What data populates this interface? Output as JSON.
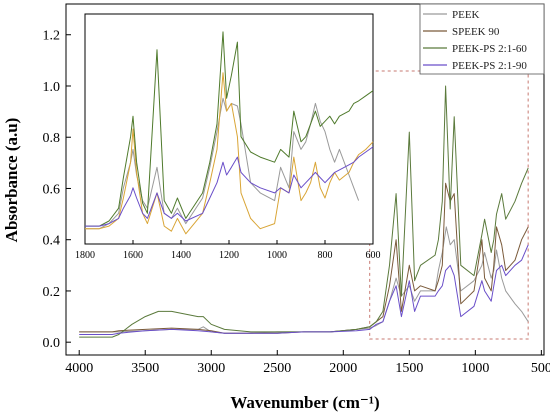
{
  "chart_data": [
    {
      "type": "line",
      "role": "main",
      "xlabel": "Wavenumber (cm⁻¹)",
      "ylabel": "Absorbance (a.u)",
      "xlim": [
        4100,
        480
      ],
      "ylim": [
        -0.05,
        1.32
      ],
      "x_reversed": true,
      "x_ticks": [
        4000,
        3500,
        3000,
        2500,
        2000,
        1500,
        1000,
        500
      ],
      "y_ticks": [
        0.0,
        0.2,
        0.4,
        0.6,
        0.8,
        1.0,
        1.2
      ],
      "y_tick_labels": [
        "0.0",
        "0.2",
        "0.4",
        "0.6",
        "0.8",
        "1.0",
        "1.2"
      ],
      "grid": false,
      "legend_placement": "top-right",
      "highlight_region": {
        "x_range": [
          1800,
          600
        ],
        "style": "dashed-box",
        "color": "#c77a72"
      },
      "series": [
        {
          "name": "PEEK",
          "color": "#9a9a9a",
          "x": [
            4000,
            3750,
            3700,
            3500,
            3300,
            3100,
            3060,
            3000,
            2900,
            2700,
            2500,
            2300,
            2100,
            1900,
            1800,
            1750,
            1700,
            1650,
            1600,
            1560,
            1500,
            1460,
            1415,
            1305,
            1280,
            1250,
            1220,
            1190,
            1160,
            1110,
            1010,
            950,
            930,
            880,
            860,
            840,
            800,
            770,
            700,
            650,
            600
          ],
          "y": [
            0.04,
            0.04,
            0.04,
            0.045,
            0.05,
            0.05,
            0.06,
            0.04,
            0.035,
            0.035,
            0.04,
            0.04,
            0.04,
            0.05,
            0.055,
            0.065,
            0.08,
            0.16,
            0.25,
            0.18,
            0.22,
            0.16,
            0.2,
            0.2,
            0.28,
            0.35,
            0.45,
            0.38,
            0.4,
            0.2,
            0.24,
            0.3,
            0.35,
            0.25,
            0.28,
            0.36,
            0.25,
            0.2,
            0.15,
            0.12,
            0.08
          ]
        },
        {
          "name": "SPEEK 90",
          "color": "#7a5a3a",
          "x": [
            4000,
            3750,
            3700,
            3500,
            3300,
            3100,
            3000,
            2900,
            2700,
            2500,
            2300,
            2100,
            1900,
            1800,
            1750,
            1700,
            1650,
            1600,
            1560,
            1500,
            1460,
            1415,
            1305,
            1280,
            1250,
            1225,
            1190,
            1160,
            1110,
            1010,
            950,
            930,
            880,
            860,
            840,
            800,
            770,
            700,
            650,
            600
          ],
          "y": [
            0.04,
            0.04,
            0.045,
            0.05,
            0.055,
            0.05,
            0.045,
            0.035,
            0.035,
            0.035,
            0.04,
            0.04,
            0.05,
            0.06,
            0.08,
            0.1,
            0.22,
            0.4,
            0.12,
            0.3,
            0.2,
            0.22,
            0.2,
            0.24,
            0.3,
            0.62,
            0.55,
            0.58,
            0.15,
            0.2,
            0.4,
            0.25,
            0.2,
            0.3,
            0.45,
            0.38,
            0.28,
            0.32,
            0.4,
            0.45
          ]
        },
        {
          "name": "PEEK-PS 2:1-60",
          "color": "#5b7a3c",
          "x": [
            4000,
            3750,
            3700,
            3600,
            3500,
            3400,
            3300,
            3200,
            3100,
            3060,
            3000,
            2900,
            2700,
            2500,
            2300,
            2100,
            1900,
            1800,
            1750,
            1700,
            1650,
            1600,
            1560,
            1500,
            1460,
            1415,
            1305,
            1280,
            1250,
            1225,
            1190,
            1160,
            1110,
            1010,
            950,
            930,
            880,
            860,
            840,
            800,
            770,
            700,
            650,
            600
          ],
          "y": [
            0.02,
            0.02,
            0.03,
            0.07,
            0.1,
            0.12,
            0.12,
            0.11,
            0.1,
            0.1,
            0.07,
            0.05,
            0.04,
            0.04,
            0.04,
            0.04,
            0.05,
            0.06,
            0.08,
            0.12,
            0.3,
            0.58,
            0.18,
            0.82,
            0.24,
            0.3,
            0.34,
            0.4,
            0.55,
            1.0,
            0.52,
            0.88,
            0.3,
            0.26,
            0.42,
            0.48,
            0.35,
            0.4,
            0.5,
            0.58,
            0.48,
            0.55,
            0.62,
            0.68
          ]
        },
        {
          "name": "PEEK-PS 2:1-90",
          "color": "#6a4fc9",
          "x": [
            4000,
            3750,
            3700,
            3500,
            3300,
            3100,
            3000,
            2900,
            2700,
            2500,
            2300,
            2100,
            1900,
            1800,
            1750,
            1700,
            1650,
            1600,
            1560,
            1500,
            1460,
            1415,
            1305,
            1280,
            1250,
            1225,
            1190,
            1160,
            1110,
            1010,
            950,
            930,
            880,
            860,
            840,
            800,
            770,
            700,
            650,
            600
          ],
          "y": [
            0.03,
            0.03,
            0.035,
            0.045,
            0.05,
            0.045,
            0.04,
            0.035,
            0.035,
            0.035,
            0.04,
            0.04,
            0.045,
            0.05,
            0.07,
            0.08,
            0.16,
            0.22,
            0.1,
            0.24,
            0.12,
            0.18,
            0.18,
            0.2,
            0.22,
            0.28,
            0.3,
            0.26,
            0.1,
            0.14,
            0.24,
            0.2,
            0.16,
            0.22,
            0.28,
            0.3,
            0.26,
            0.3,
            0.32,
            0.38
          ]
        }
      ]
    },
    {
      "type": "line",
      "role": "inset",
      "xlim": [
        1800,
        600
      ],
      "ylim": [
        0.38,
        1.28
      ],
      "x_reversed": true,
      "x_ticks": [
        1800,
        1600,
        1400,
        1200,
        1000,
        800,
        600
      ],
      "series": [
        {
          "name": "PEEK",
          "color": "#9a9a9a",
          "x": [
            1800,
            1740,
            1700,
            1660,
            1640,
            1610,
            1600,
            1585,
            1560,
            1540,
            1500,
            1470,
            1440,
            1415,
            1380,
            1310,
            1280,
            1250,
            1225,
            1210,
            1190,
            1165,
            1150,
            1110,
            1070,
            1010,
            985,
            950,
            930,
            900,
            880,
            860,
            840,
            820,
            800,
            780,
            760,
            740,
            700,
            680,
            660
          ],
          "y": [
            0.44,
            0.44,
            0.46,
            0.5,
            0.6,
            0.7,
            0.75,
            0.65,
            0.55,
            0.52,
            0.68,
            0.5,
            0.48,
            0.52,
            0.46,
            0.56,
            0.68,
            0.82,
            0.95,
            0.9,
            0.93,
            0.92,
            0.85,
            0.62,
            0.58,
            0.55,
            0.68,
            0.6,
            0.82,
            0.75,
            0.78,
            0.85,
            0.93,
            0.86,
            0.82,
            0.75,
            0.7,
            0.75,
            0.65,
            0.6,
            0.55
          ]
        },
        {
          "name": "SPEEK 90",
          "color": "#d9a536",
          "x": [
            1800,
            1740,
            1700,
            1660,
            1640,
            1610,
            1600,
            1585,
            1560,
            1540,
            1500,
            1470,
            1440,
            1415,
            1380,
            1310,
            1280,
            1250,
            1225,
            1210,
            1190,
            1165,
            1150,
            1110,
            1070,
            1010,
            985,
            950,
            930,
            900,
            880,
            860,
            840,
            820,
            800,
            780,
            760,
            740,
            700,
            680,
            660,
            630,
            600
          ],
          "y": [
            0.44,
            0.44,
            0.45,
            0.48,
            0.56,
            0.7,
            0.83,
            0.66,
            0.5,
            0.46,
            0.58,
            0.45,
            0.43,
            0.48,
            0.42,
            0.5,
            0.62,
            0.75,
            1.05,
            0.9,
            0.93,
            0.8,
            0.58,
            0.48,
            0.44,
            0.46,
            0.6,
            0.58,
            0.72,
            0.55,
            0.58,
            0.62,
            0.7,
            0.6,
            0.56,
            0.62,
            0.66,
            0.63,
            0.66,
            0.7,
            0.73,
            0.75,
            0.78
          ]
        },
        {
          "name": "PEEK-PS 2:1-60",
          "color": "#4f7a2c",
          "x": [
            1800,
            1740,
            1700,
            1660,
            1640,
            1610,
            1600,
            1585,
            1560,
            1540,
            1500,
            1470,
            1440,
            1415,
            1380,
            1310,
            1280,
            1250,
            1225,
            1210,
            1190,
            1165,
            1150,
            1110,
            1070,
            1010,
            985,
            950,
            930,
            900,
            880,
            860,
            840,
            820,
            800,
            780,
            760,
            740,
            700,
            680,
            660,
            630,
            600
          ],
          "y": [
            0.45,
            0.45,
            0.47,
            0.52,
            0.64,
            0.8,
            0.88,
            0.7,
            0.54,
            0.5,
            1.14,
            0.55,
            0.5,
            0.56,
            0.48,
            0.58,
            0.7,
            0.85,
            1.21,
            0.95,
            1.04,
            1.17,
            0.8,
            0.74,
            0.72,
            0.7,
            0.75,
            0.72,
            0.9,
            0.78,
            0.8,
            0.85,
            0.9,
            0.84,
            0.86,
            0.88,
            0.85,
            0.88,
            0.9,
            0.93,
            0.94,
            0.96,
            0.98
          ]
        },
        {
          "name": "PEEK-PS 2:1-90",
          "color": "#6a4fc9",
          "x": [
            1800,
            1740,
            1700,
            1660,
            1640,
            1610,
            1600,
            1585,
            1560,
            1540,
            1500,
            1470,
            1440,
            1415,
            1380,
            1310,
            1280,
            1250,
            1225,
            1210,
            1190,
            1165,
            1150,
            1110,
            1070,
            1010,
            985,
            950,
            930,
            900,
            880,
            860,
            840,
            820,
            800,
            780,
            760,
            740,
            700,
            680,
            660,
            630,
            600
          ],
          "y": [
            0.45,
            0.45,
            0.46,
            0.48,
            0.52,
            0.57,
            0.6,
            0.56,
            0.5,
            0.48,
            0.58,
            0.5,
            0.48,
            0.5,
            0.47,
            0.5,
            0.56,
            0.62,
            0.7,
            0.65,
            0.68,
            0.72,
            0.66,
            0.62,
            0.6,
            0.58,
            0.6,
            0.58,
            0.65,
            0.6,
            0.62,
            0.64,
            0.66,
            0.64,
            0.62,
            0.64,
            0.66,
            0.67,
            0.69,
            0.7,
            0.72,
            0.74,
            0.76
          ]
        }
      ]
    }
  ]
}
